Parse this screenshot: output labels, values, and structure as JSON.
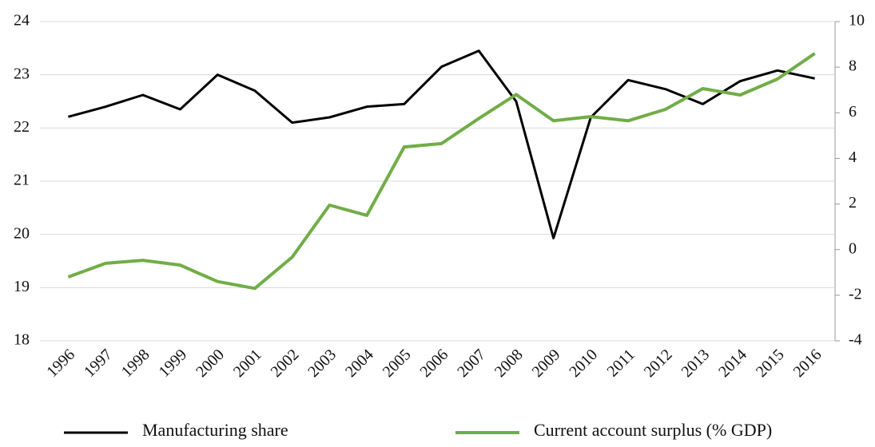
{
  "chart_data": {
    "type": "line",
    "categories": [
      "1996",
      "1997",
      "1998",
      "1999",
      "2000",
      "2001",
      "2002",
      "2003",
      "2004",
      "2005",
      "2006",
      "2007",
      "2008",
      "2009",
      "2010",
      "2011",
      "2012",
      "2013",
      "2014",
      "2015",
      "2016"
    ],
    "series": [
      {
        "name": "Manufacturing share",
        "color": "#000000",
        "values": [
          22.21,
          22.4,
          22.62,
          22.35,
          23.0,
          22.7,
          22.1,
          22.2,
          22.4,
          22.45,
          23.15,
          23.45,
          22.5,
          19.93,
          22.2,
          22.9,
          22.73,
          22.45,
          22.88,
          23.08,
          22.93
        ]
      },
      {
        "name": "Current account surplus (% GDP)",
        "color": "#70ad47",
        "axis": "y2",
        "values": [
          -1.2,
          -0.6,
          -0.47,
          -0.68,
          -1.4,
          -1.7,
          -0.33,
          1.95,
          1.5,
          4.5,
          4.65,
          5.75,
          6.8,
          5.65,
          5.83,
          5.65,
          6.15,
          7.06,
          6.78,
          7.48,
          8.6
        ]
      }
    ],
    "ylim": [
      18,
      24
    ],
    "yticks": [
      18,
      19,
      20,
      21,
      22,
      23,
      24
    ],
    "y2lim": [
      -4,
      10
    ],
    "y2ticks": [
      -4,
      -2,
      0,
      2,
      4,
      6,
      8,
      10
    ],
    "grid": true,
    "legend": "bottom"
  }
}
